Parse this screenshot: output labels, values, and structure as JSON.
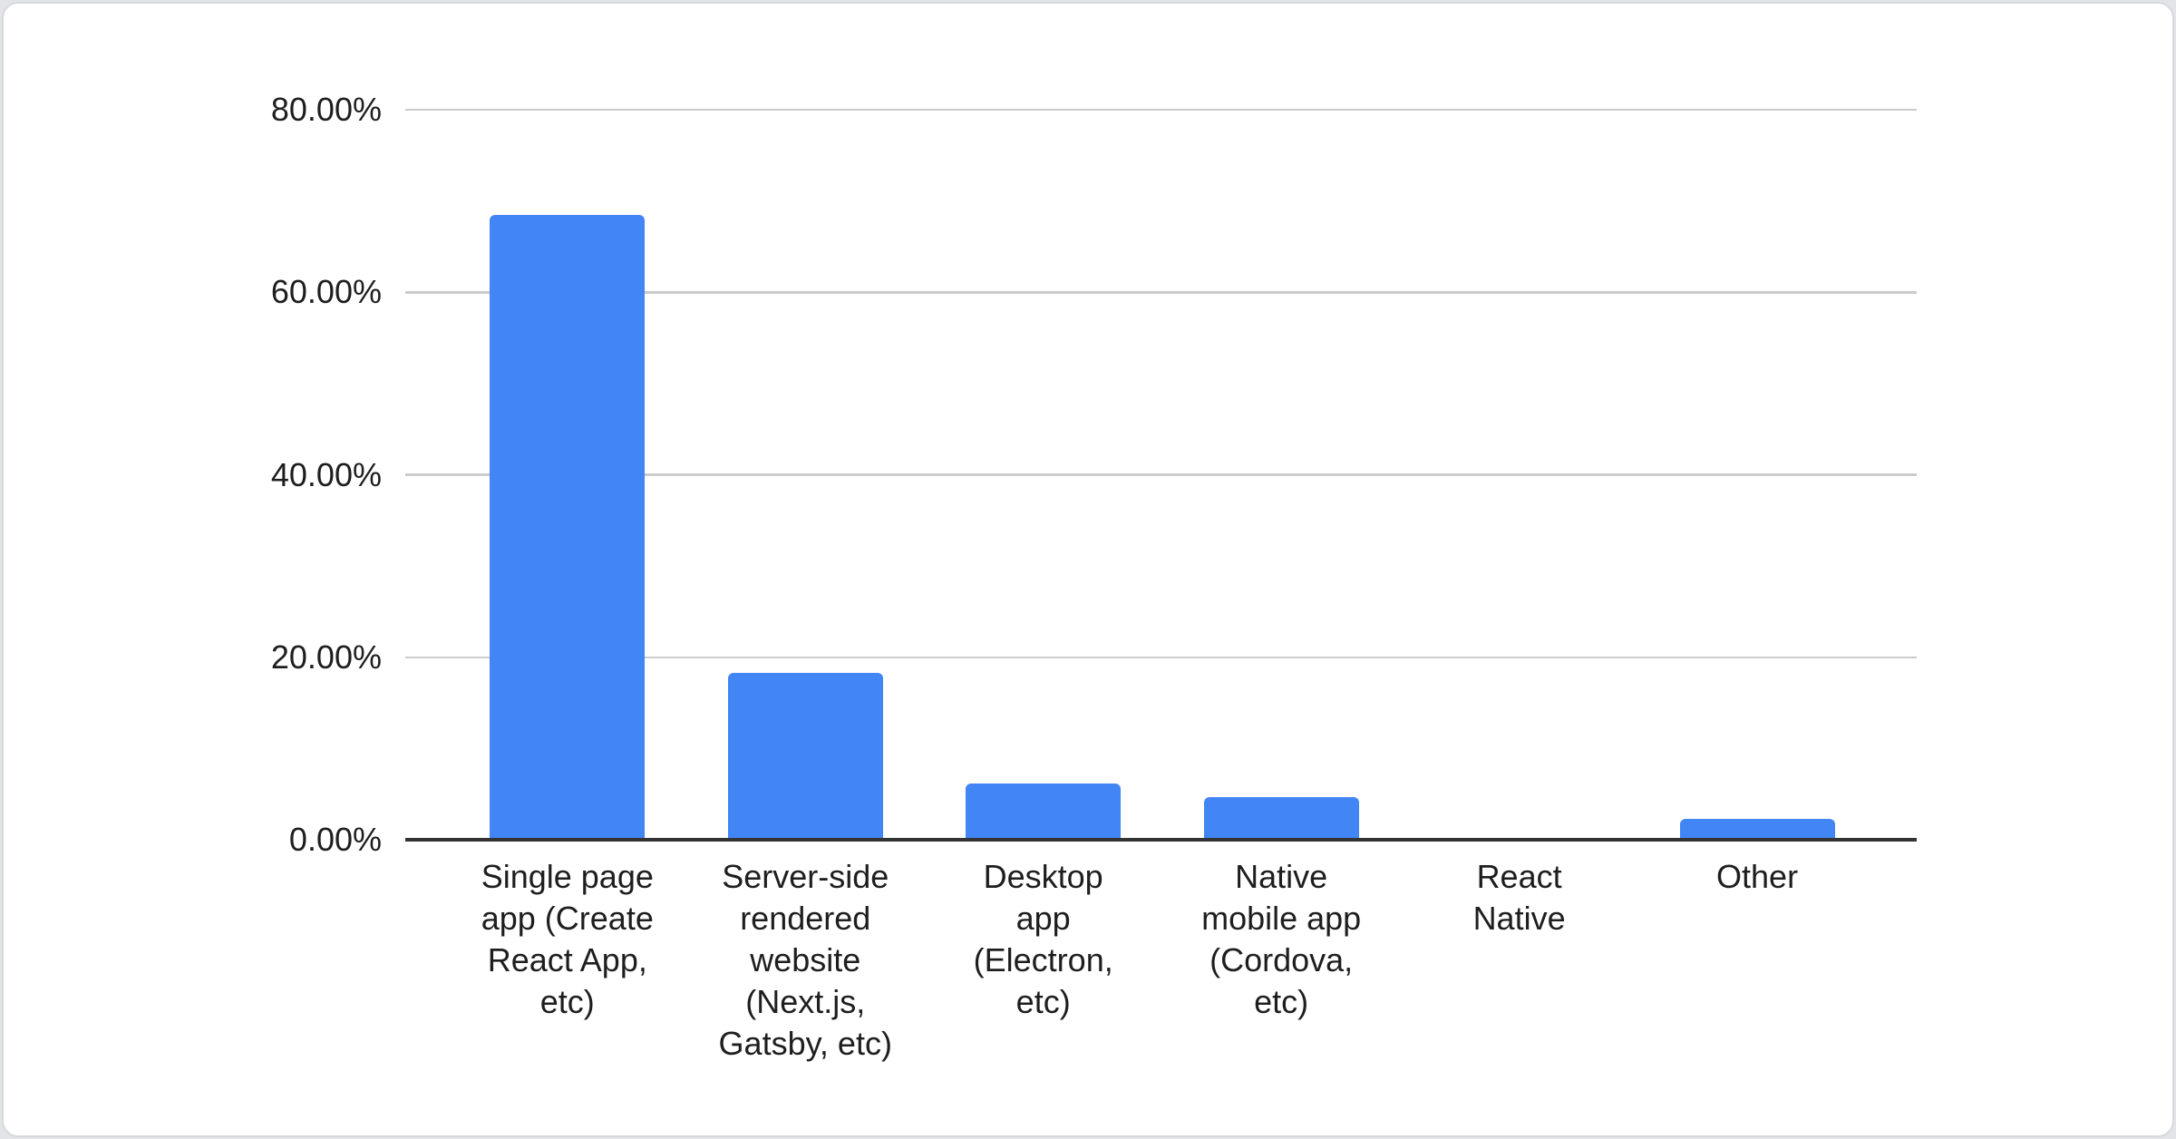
{
  "card": {
    "page_background": "#e2e4e7",
    "background": "#ffffff",
    "border_color": "#d6d9dc"
  },
  "chart_data": {
    "type": "bar",
    "categories": [
      "Single page app (Create React App, etc)",
      "Server-side rendered website (Next.js, Gatsby, etc)",
      "Desktop app (Electron, etc)",
      "Native mobile app (Cordova, etc)",
      "React Native",
      "Other"
    ],
    "category_lines": [
      [
        "Single page",
        "app (Create",
        "React App,",
        "etc)"
      ],
      [
        "Server-side",
        "rendered",
        "website",
        "(Next.js,",
        "Gatsby, etc)"
      ],
      [
        "Desktop",
        "app",
        "(Electron,",
        "etc)"
      ],
      [
        "Native",
        "mobile app",
        "(Cordova,",
        "etc)"
      ],
      [
        "React",
        "Native"
      ],
      [
        "Other"
      ]
    ],
    "values": [
      68.5,
      18.3,
      6.2,
      4.7,
      0,
      2.3
    ],
    "unit": "%",
    "bar_color": "#4285f4",
    "ylim": [
      0,
      80
    ],
    "yticks": [
      {
        "value": 80,
        "label": "80.00%"
      },
      {
        "value": 60,
        "label": "60.00%"
      },
      {
        "value": 40,
        "label": "40.00%"
      },
      {
        "value": 20,
        "label": "20.00%"
      },
      {
        "value": 0,
        "label": "0.00%"
      }
    ],
    "grid": true,
    "legend": "none",
    "gridline_color": "#cbcbcb",
    "axis_color": "#333333",
    "text_color": "#1e1e1e"
  }
}
